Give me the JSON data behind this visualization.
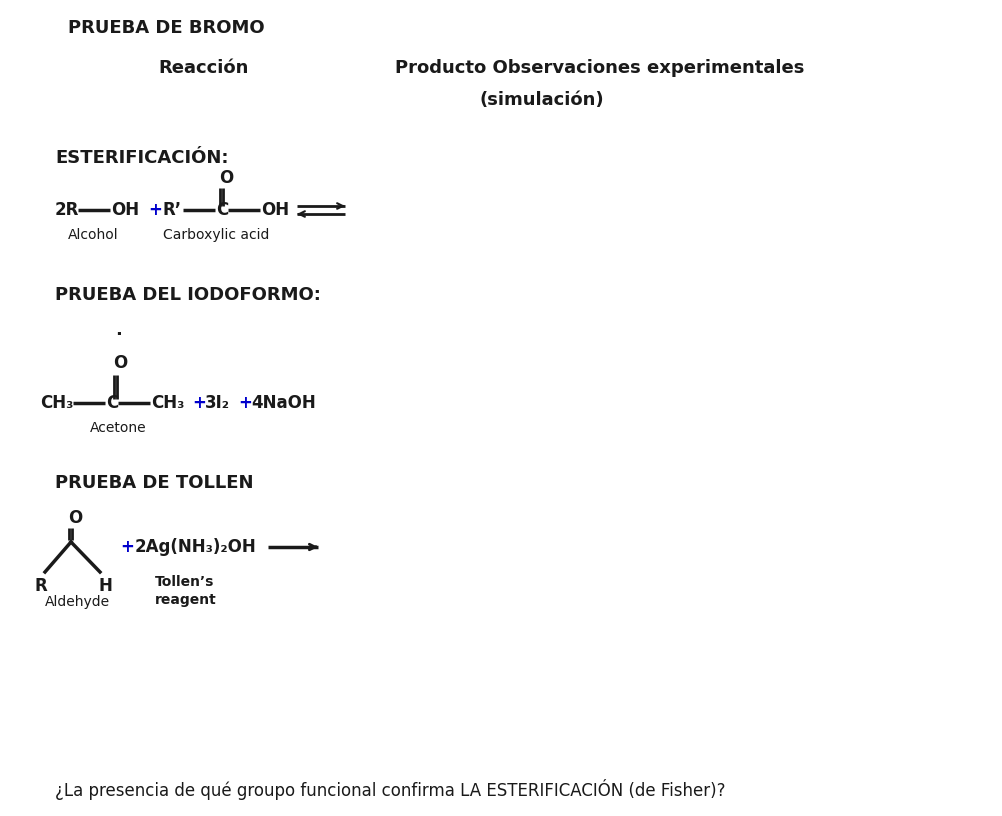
{
  "background_color": "#ffffff",
  "dark_color": "#1a1a1a",
  "blue_color": "#0000cc",
  "orange_color": "#8B4513",
  "title_top": "PRUEBA DE BROMO",
  "header_reaction": "Reacción",
  "header_product": "Producto Observaciones experimentales",
  "header_product2": "(simulación)",
  "section1_label": "ESTERIFICACIÓN:",
  "section2_label": "PRUEBA DEL IODOFORMO:",
  "section3_label": "PRUEBA DE TOLLEN",
  "footer_text": "¿La presencia de qué groupo funcional confirma LA ESTERIFICACIÓN (de Fisher)?"
}
